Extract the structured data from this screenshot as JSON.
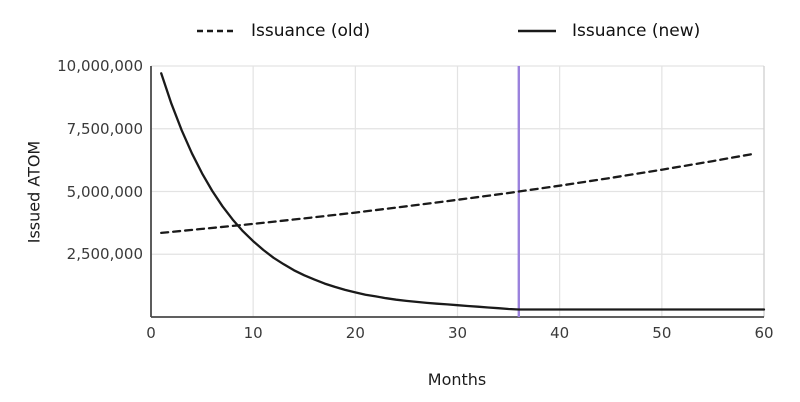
{
  "chart_data": {
    "type": "line",
    "title": "",
    "xlabel": "Months",
    "ylabel": "Issued ATOM",
    "xlim": [
      0,
      60
    ],
    "ylim": [
      0,
      10000000
    ],
    "grid": true,
    "legend_position": "top",
    "x_ticks": [
      {
        "value": 0,
        "label": "0"
      },
      {
        "value": 10,
        "label": "10"
      },
      {
        "value": 20,
        "label": "20"
      },
      {
        "value": 30,
        "label": "30"
      },
      {
        "value": 40,
        "label": "40"
      },
      {
        "value": 50,
        "label": "50"
      },
      {
        "value": 60,
        "label": "60"
      }
    ],
    "y_ticks": [
      {
        "value": 2500000,
        "label": "2,500,000"
      },
      {
        "value": 5000000,
        "label": "5,000,000"
      },
      {
        "value": 7500000,
        "label": "7,500,000"
      },
      {
        "value": 10000000,
        "label": "10,000,000"
      }
    ],
    "series": [
      {
        "name": "Issuance (old)",
        "style": "dashed",
        "color": "#1a1a1a",
        "points": [
          [
            1,
            3350000
          ],
          [
            5,
            3510000
          ],
          [
            10,
            3710000
          ],
          [
            15,
            3930000
          ],
          [
            20,
            4160000
          ],
          [
            25,
            4410000
          ],
          [
            30,
            4670000
          ],
          [
            35,
            4940000
          ],
          [
            36,
            5000000
          ],
          [
            40,
            5230000
          ],
          [
            45,
            5540000
          ],
          [
            50,
            5870000
          ],
          [
            55,
            6210000
          ],
          [
            59,
            6500000
          ]
        ]
      },
      {
        "name": "Issuance (new)",
        "style": "solid",
        "color": "#1a1a1a",
        "points": [
          [
            1,
            9710000
          ],
          [
            2,
            8500000
          ],
          [
            3,
            7440000
          ],
          [
            4,
            6520000
          ],
          [
            5,
            5720000
          ],
          [
            6,
            5020000
          ],
          [
            7,
            4410000
          ],
          [
            8,
            3880000
          ],
          [
            9,
            3420000
          ],
          [
            10,
            3020000
          ],
          [
            11,
            2670000
          ],
          [
            12,
            2360000
          ],
          [
            13,
            2100000
          ],
          [
            14,
            1860000
          ],
          [
            15,
            1660000
          ],
          [
            16,
            1490000
          ],
          [
            17,
            1330000
          ],
          [
            18,
            1200000
          ],
          [
            19,
            1080000
          ],
          [
            20,
            980000
          ],
          [
            21,
            890000
          ],
          [
            22,
            820000
          ],
          [
            23,
            750000
          ],
          [
            24,
            690000
          ],
          [
            25,
            640000
          ],
          [
            26,
            600000
          ],
          [
            27,
            560000
          ],
          [
            28,
            530000
          ],
          [
            29,
            500000
          ],
          [
            30,
            470000
          ],
          [
            31,
            440000
          ],
          [
            32,
            410000
          ],
          [
            33,
            380000
          ],
          [
            34,
            350000
          ],
          [
            35,
            320000
          ],
          [
            36,
            300000
          ],
          [
            40,
            300000
          ],
          [
            45,
            300000
          ],
          [
            50,
            300000
          ],
          [
            55,
            300000
          ],
          [
            60,
            300000
          ]
        ]
      }
    ],
    "annotations": [
      {
        "type": "vline",
        "x": 36,
        "color": "#9b82dd"
      }
    ]
  },
  "legend": {
    "old_label": "Issuance (old)",
    "new_label": "Issuance (new)"
  },
  "colors": {
    "background": "#ffffff",
    "grid": "#e3e3e3",
    "spine_dark": "#4a4a4a",
    "spine_light": "#cfcfcf",
    "line": "#1a1a1a",
    "vline": "#9b82dd",
    "tick_text": "#3a3a3a",
    "axis_text": "#1c1c1c"
  }
}
